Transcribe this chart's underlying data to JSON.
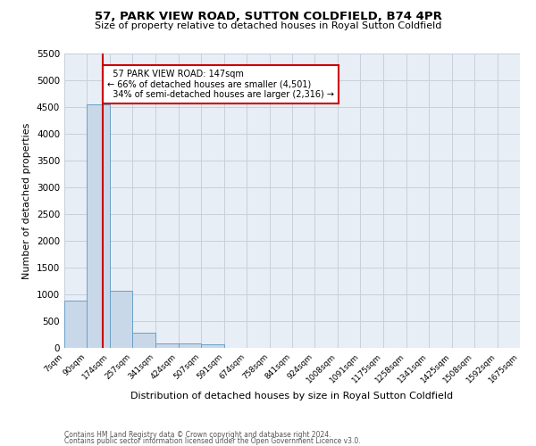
{
  "title1": "57, PARK VIEW ROAD, SUTTON COLDFIELD, B74 4PR",
  "title2": "Size of property relative to detached houses in Royal Sutton Coldfield",
  "xlabel": "Distribution of detached houses by size in Royal Sutton Coldfield",
  "ylabel": "Number of detached properties",
  "footnote1": "Contains HM Land Registry data © Crown copyright and database right 2024.",
  "footnote2": "Contains public sector information licensed under the Open Government Licence v3.0.",
  "bar_color": "#c8d8e8",
  "bar_edge_color": "#6aa0c8",
  "grid_color": "#c8d0dc",
  "background_color": "#e8eef5",
  "annotation_box_color": "#cc0000",
  "property_line_color": "#cc0000",
  "bin_edges": [
    7,
    90,
    174,
    257,
    341,
    424,
    507,
    591,
    674,
    758,
    841,
    924,
    1008,
    1091,
    1175,
    1258,
    1341,
    1425,
    1508,
    1592,
    1675
  ],
  "bin_labels": [
    "7sqm",
    "90sqm",
    "174sqm",
    "257sqm",
    "341sqm",
    "424sqm",
    "507sqm",
    "591sqm",
    "674sqm",
    "758sqm",
    "841sqm",
    "924sqm",
    "1008sqm",
    "1091sqm",
    "1175sqm",
    "1258sqm",
    "1341sqm",
    "1425sqm",
    "1508sqm",
    "1592sqm",
    "1675sqm"
  ],
  "counts": [
    880,
    4550,
    1060,
    290,
    90,
    80,
    60,
    0,
    0,
    0,
    0,
    0,
    0,
    0,
    0,
    0,
    0,
    0,
    0,
    0
  ],
  "property_size": 147,
  "property_label": "57 PARK VIEW ROAD: 147sqm",
  "pct_smaller": "66% of detached houses are smaller (4,501)",
  "pct_larger": "34% of semi-detached houses are larger (2,316)",
  "ylim": [
    0,
    5500
  ],
  "yticks": [
    0,
    500,
    1000,
    1500,
    2000,
    2500,
    3000,
    3500,
    4000,
    4500,
    5000,
    5500
  ]
}
